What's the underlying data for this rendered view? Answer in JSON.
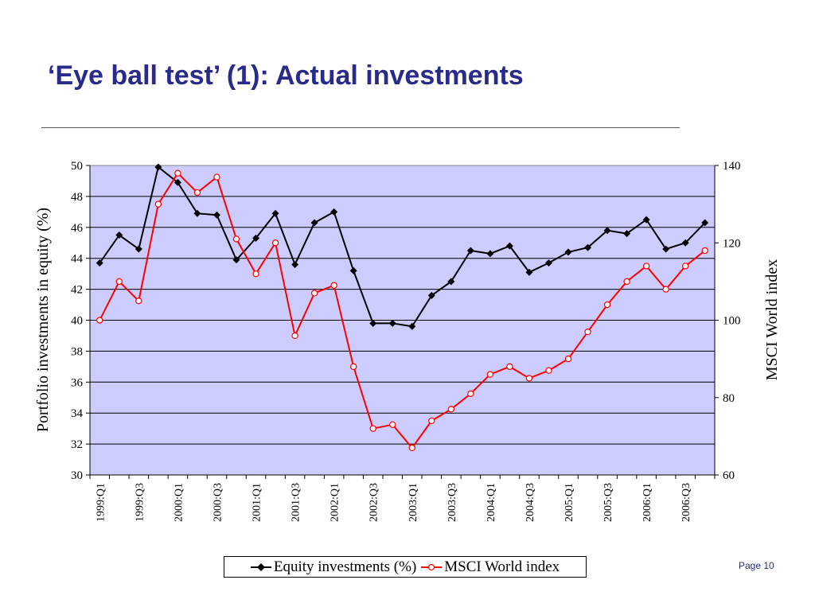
{
  "title": "‘Eye ball test’ (1): Actual investments",
  "page_label": "Page 10",
  "chart_data": {
    "type": "line",
    "y_left_label": "Portfolio investments in equity (%)",
    "y_right_label": "MSCI World index",
    "y_left_range": [
      30,
      50
    ],
    "y_left_ticks": [
      30,
      32,
      34,
      36,
      38,
      40,
      42,
      44,
      46,
      48,
      50
    ],
    "y_right_range": [
      60,
      140
    ],
    "y_right_ticks": [
      60,
      80,
      100,
      120,
      140
    ],
    "grid": true,
    "plot_background": "#ccccff",
    "legend_position": "bottom",
    "categories": [
      "1999:Q1",
      "1999:Q2",
      "1999:Q3",
      "1999:Q4",
      "2000:Q1",
      "2000:Q2",
      "2000:Q3",
      "2000:Q4",
      "2001:Q1",
      "2001:Q2",
      "2001:Q3",
      "2001:Q4",
      "2002:Q1",
      "2002:Q2",
      "2002:Q3",
      "2002:Q4",
      "2003:Q1",
      "2003:Q2",
      "2003:Q3",
      "2003:Q4",
      "2004:Q1",
      "2004:Q2",
      "2004:Q3",
      "2004:Q4",
      "2005:Q1",
      "2005:Q2",
      "2005:Q3",
      "2005:Q4",
      "2006:Q1",
      "2006:Q2",
      "2006:Q3",
      "2006:Q4"
    ],
    "tick_labels": [
      "1999:Q1",
      "1999:Q3",
      "2000:Q1",
      "2000:Q3",
      "2001:Q1",
      "2001:Q3",
      "2002:Q1",
      "2002:Q3",
      "2003:Q1",
      "2003:Q3",
      "2004:Q1",
      "2004:Q3",
      "2005:Q1",
      "2005:Q3",
      "2006:Q1",
      "2006:Q3"
    ],
    "series": [
      {
        "name": "Equity investments (%)",
        "axis": "left",
        "color": "#000000",
        "marker": "diamond",
        "values": [
          43.7,
          45.5,
          44.6,
          49.9,
          48.9,
          46.9,
          46.8,
          43.9,
          45.3,
          46.9,
          43.6,
          46.3,
          47.0,
          43.2,
          39.8,
          39.8,
          39.6,
          41.6,
          42.5,
          44.5,
          44.3,
          44.8,
          43.1,
          43.7,
          44.4,
          44.7,
          45.8,
          45.6,
          46.5,
          44.6,
          45.0,
          46.3
        ]
      },
      {
        "name": "MSCI World index",
        "axis": "right",
        "color": "#ff0000",
        "marker": "circle",
        "values": [
          100,
          110,
          105,
          130,
          138,
          133,
          137,
          121,
          112,
          120,
          96,
          107,
          109,
          88,
          72,
          73,
          67,
          74,
          77,
          81,
          86,
          88,
          85,
          87,
          90,
          97,
          104,
          110,
          114,
          108,
          114,
          118
        ]
      }
    ]
  }
}
